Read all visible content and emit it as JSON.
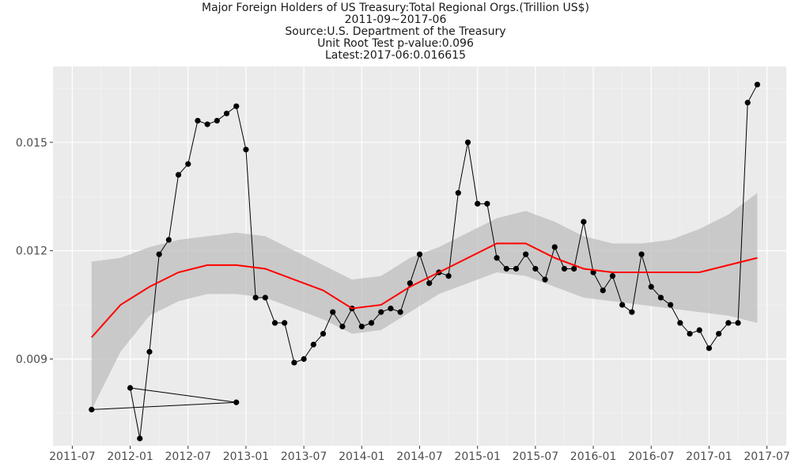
{
  "title_lines": [
    "Major Foreign Holders of US Treasury:Total Regional Orgs.(Trillion US$)",
    "2011-09~2017-06",
    "Source:U.S. Department of the Treasury",
    "Unit Root Test p-value:0.096",
    "Latest:2017-06:0.016615"
  ],
  "chart_data": {
    "type": "line",
    "title": "Major Foreign Holders of US Treasury:Total Regional Orgs.(Trillion US$)",
    "subtitle": "2011-09~2017-06",
    "xlabel": "",
    "ylabel": "",
    "x_range": [
      "2011-05",
      "2017-09"
    ],
    "ylim": [
      0.0066,
      0.0171
    ],
    "x_ticks": [
      "2011-07",
      "2012-01",
      "2012-07",
      "2013-01",
      "2013-07",
      "2014-01",
      "2014-07",
      "2015-01",
      "2015-07",
      "2016-01",
      "2016-07",
      "2017-01",
      "2017-07"
    ],
    "y_ticks": [
      0.009,
      0.012,
      0.015
    ],
    "y_tick_labels": [
      "0.009",
      "0.012",
      "0.015"
    ],
    "grid": true,
    "colors": {
      "panel": "#ebebeb",
      "grid": "#ffffff",
      "series": "#000000",
      "smooth": "#ff0000",
      "band": "#c8c8c8"
    },
    "series": [
      {
        "x": [
          "2011-09",
          "2012-12",
          "2012-01",
          "2012-02",
          "2012-03",
          "2012-04",
          "2012-05",
          "2012-06",
          "2012-07",
          "2012-08",
          "2012-09",
          "2012-10",
          "2012-11",
          "2012-12",
          "2013-01",
          "2013-02",
          "2013-03",
          "2013-04",
          "2013-05",
          "2013-06",
          "2013-07",
          "2013-08",
          "2013-09",
          "2013-10",
          "2013-11",
          "2013-12",
          "2014-01",
          "2014-02",
          "2014-03",
          "2014-04",
          "2014-05",
          "2014-06",
          "2014-07",
          "2014-08",
          "2014-09",
          "2014-10",
          "2014-11",
          "2014-12",
          "2015-01",
          "2015-02",
          "2015-03",
          "2015-04",
          "2015-05",
          "2015-06",
          "2015-07",
          "2015-08",
          "2015-09",
          "2015-10",
          "2015-11",
          "2015-12",
          "2016-01",
          "2016-02",
          "2016-03",
          "2016-04",
          "2016-05",
          "2016-06",
          "2016-07",
          "2016-08",
          "2016-09",
          "2016-10",
          "2016-11",
          "2016-12",
          "2017-01",
          "2017-02",
          "2017-03",
          "2017-04",
          "2017-05",
          "2017-06"
        ],
        "values": [
          0.0076,
          0.0078,
          0.0082,
          0.0068,
          0.0092,
          0.0119,
          0.0123,
          0.0141,
          0.0144,
          0.0156,
          0.0155,
          0.0156,
          0.0158,
          0.016,
          0.0148,
          0.0107,
          0.0107,
          0.01,
          0.01,
          0.0089,
          0.009,
          0.0094,
          0.0097,
          0.0103,
          0.0099,
          0.0104,
          0.0099,
          0.01,
          0.0103,
          0.0104,
          0.0103,
          0.0111,
          0.0119,
          0.0111,
          0.0114,
          0.0113,
          0.0136,
          0.015,
          0.0133,
          0.0133,
          0.0118,
          0.0115,
          0.0115,
          0.0119,
          0.0115,
          0.0112,
          0.0121,
          0.0115,
          0.0115,
          0.0128,
          0.0114,
          0.0109,
          0.0113,
          0.0105,
          0.0103,
          0.0119,
          0.011,
          0.0107,
          0.0105,
          0.01,
          0.0097,
          0.0098,
          0.0093,
          0.0097,
          0.01,
          0.01,
          0.0161,
          0.0166
        ]
      }
    ],
    "smooth": {
      "x": [
        "2011-09",
        "2011-12",
        "2012-03",
        "2012-06",
        "2012-09",
        "2012-12",
        "2013-03",
        "2013-06",
        "2013-09",
        "2013-12",
        "2014-03",
        "2014-06",
        "2014-09",
        "2014-12",
        "2015-03",
        "2015-06",
        "2015-09",
        "2015-12",
        "2016-03",
        "2016-06",
        "2016-09",
        "2016-12",
        "2017-03",
        "2017-06"
      ],
      "values": [
        0.0096,
        0.0105,
        0.011,
        0.0114,
        0.0116,
        0.0116,
        0.0115,
        0.0112,
        0.0109,
        0.0104,
        0.0105,
        0.011,
        0.0114,
        0.0118,
        0.0122,
        0.0122,
        0.0118,
        0.0115,
        0.0114,
        0.0114,
        0.0114,
        0.0114,
        0.0116,
        0.0118
      ],
      "lower": [
        0.0076,
        0.0092,
        0.0102,
        0.0106,
        0.0108,
        0.0108,
        0.0107,
        0.0104,
        0.0101,
        0.0097,
        0.0098,
        0.0103,
        0.0108,
        0.0111,
        0.0114,
        0.0113,
        0.011,
        0.0107,
        0.0106,
        0.0105,
        0.0104,
        0.0103,
        0.0102,
        0.01
      ],
      "upper": [
        0.0117,
        0.0118,
        0.0121,
        0.0123,
        0.0124,
        0.0125,
        0.0124,
        0.012,
        0.0116,
        0.0112,
        0.0113,
        0.0118,
        0.0121,
        0.0125,
        0.0129,
        0.0131,
        0.0128,
        0.0124,
        0.0122,
        0.0122,
        0.0123,
        0.0126,
        0.013,
        0.0136
      ]
    }
  }
}
